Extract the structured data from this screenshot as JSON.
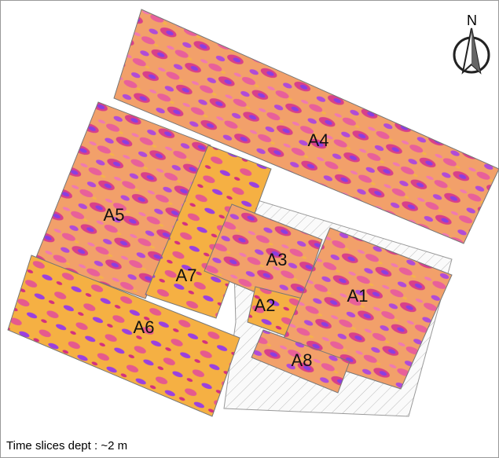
{
  "north": "N",
  "areas": [
    "A4",
    "A5",
    "A7",
    "A3",
    "A2",
    "A1",
    "A6",
    "A8"
  ],
  "caption": "Time slices dept : ~2 m"
}
